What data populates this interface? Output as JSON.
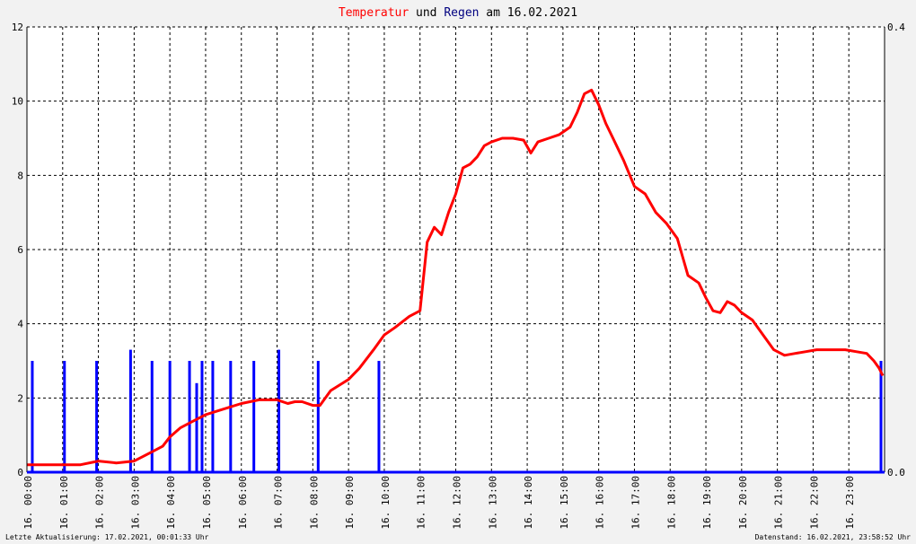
{
  "title": {
    "part1": "Temperatur",
    "part2": " und ",
    "part3": "Regen",
    "part4": " am 16.02.2021",
    "color1": "#ff0000",
    "color2": "#000000",
    "color3": "#000080",
    "color4": "#000000"
  },
  "footer": {
    "left": "Letzte Aktualisierung: 17.02.2021, 00:01:33 Uhr",
    "right": "Datenstand: 16.02.2021, 23:58:52 Uhr"
  },
  "chart_data": {
    "type": "line",
    "grid": true,
    "x_range_hours": [
      0,
      24
    ],
    "x_ticks": [
      "16. 00:00",
      "16. 01:00",
      "16. 02:00",
      "16. 03:00",
      "16. 04:00",
      "16. 05:00",
      "16. 06:00",
      "16. 07:00",
      "16. 08:00",
      "16. 09:00",
      "16. 10:00",
      "16. 11:00",
      "16. 12:00",
      "16. 13:00",
      "16. 14:00",
      "16. 15:00",
      "16. 16:00",
      "16. 17:00",
      "16. 18:00",
      "16. 19:00",
      "16. 20:00",
      "16. 21:00",
      "16. 22:00",
      "16. 23:00"
    ],
    "y_left": {
      "range": [
        0,
        12
      ],
      "ticks": [
        "0",
        "2",
        "4",
        "6",
        "8",
        "10",
        "12"
      ]
    },
    "y_right": {
      "range": [
        0,
        0.4
      ],
      "ticks": [
        "0.0",
        "0.4"
      ]
    },
    "series": [
      {
        "kind": "line",
        "color": "#ff0000",
        "x": [
          0.0,
          0.5,
          1.0,
          1.5,
          2.0,
          2.5,
          3.0,
          3.5,
          3.8,
          4.0,
          4.3,
          4.6,
          5.0,
          5.5,
          6.0,
          6.5,
          7.0,
          7.3,
          7.5,
          7.7,
          8.0,
          8.2,
          8.5,
          9.0,
          9.3,
          9.7,
          10.0,
          10.3,
          10.7,
          11.0,
          11.2,
          11.4,
          11.6,
          11.8,
          12.0,
          12.2,
          12.4,
          12.6,
          12.8,
          13.0,
          13.3,
          13.6,
          13.9,
          14.1,
          14.3,
          14.6,
          14.9,
          15.2,
          15.4,
          15.6,
          15.8,
          16.0,
          16.2,
          16.4,
          16.7,
          17.0,
          17.3,
          17.6,
          17.9,
          18.2,
          18.5,
          18.8,
          19.0,
          19.2,
          19.4,
          19.6,
          19.8,
          20.0,
          20.3,
          20.6,
          20.9,
          21.2,
          21.5,
          21.8,
          22.1,
          22.5,
          22.9,
          23.2,
          23.5,
          23.7,
          23.85,
          23.95
        ],
        "values": [
          0.2,
          0.2,
          0.2,
          0.2,
          0.3,
          0.25,
          0.3,
          0.55,
          0.7,
          0.95,
          1.2,
          1.35,
          1.55,
          1.7,
          1.85,
          1.95,
          1.95,
          1.85,
          1.9,
          1.9,
          1.8,
          1.8,
          2.2,
          2.5,
          2.8,
          3.3,
          3.7,
          3.9,
          4.2,
          4.35,
          6.2,
          6.6,
          6.4,
          7.0,
          7.5,
          8.2,
          8.3,
          8.5,
          8.8,
          8.9,
          9.0,
          9.0,
          8.95,
          8.6,
          8.9,
          9.0,
          9.1,
          9.3,
          9.7,
          10.2,
          10.3,
          9.9,
          9.4,
          9.0,
          8.4,
          7.7,
          7.5,
          7.0,
          6.7,
          6.3,
          5.3,
          5.1,
          4.7,
          4.35,
          4.3,
          4.6,
          4.5,
          4.3,
          4.1,
          3.7,
          3.3,
          3.15,
          3.2,
          3.25,
          3.3,
          3.3,
          3.3,
          3.25,
          3.2,
          3.0,
          2.8,
          2.6
        ]
      },
      {
        "kind": "bar",
        "color": "#0000ff",
        "axis": "right",
        "x": [
          0.15,
          1.05,
          1.95,
          2.9,
          3.5,
          4.0,
          4.55,
          4.75,
          4.9,
          5.2,
          5.7,
          6.35,
          7.05,
          8.15,
          9.85,
          23.9
        ],
        "values": [
          0.1,
          0.1,
          0.1,
          0.11,
          0.1,
          0.1,
          0.1,
          0.08,
          0.1,
          0.1,
          0.1,
          0.1,
          0.11,
          0.1,
          0.1,
          0.1
        ]
      }
    ]
  }
}
